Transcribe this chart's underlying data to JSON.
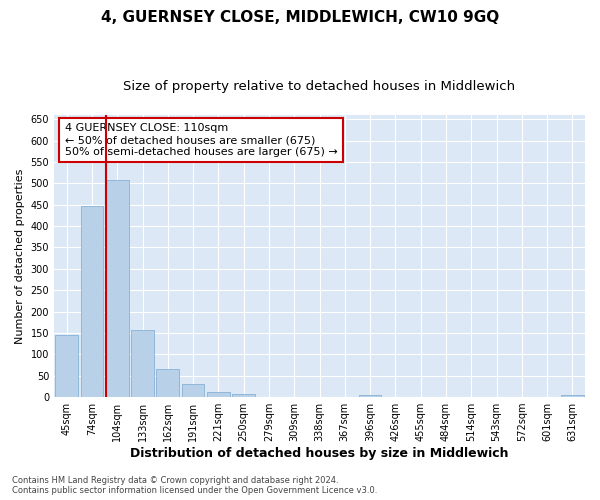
{
  "title": "4, GUERNSEY CLOSE, MIDDLEWICH, CW10 9GQ",
  "subtitle": "Size of property relative to detached houses in Middlewich",
  "xlabel": "Distribution of detached houses by size in Middlewich",
  "ylabel": "Number of detached properties",
  "categories": [
    "45sqm",
    "74sqm",
    "104sqm",
    "133sqm",
    "162sqm",
    "191sqm",
    "221sqm",
    "250sqm",
    "279sqm",
    "309sqm",
    "338sqm",
    "367sqm",
    "396sqm",
    "426sqm",
    "455sqm",
    "484sqm",
    "514sqm",
    "543sqm",
    "572sqm",
    "601sqm",
    "631sqm"
  ],
  "values": [
    145,
    448,
    507,
    157,
    65,
    30,
    13,
    7,
    0,
    0,
    0,
    0,
    5,
    0,
    0,
    0,
    0,
    0,
    0,
    0,
    4
  ],
  "bar_color": "#b8d0e8",
  "bar_edgecolor": "#7aaad0",
  "vline_color": "#cc0000",
  "annotation_text": "4 GUERNSEY CLOSE: 110sqm\n← 50% of detached houses are smaller (675)\n50% of semi-detached houses are larger (675) →",
  "annotation_box_edgecolor": "#cc0000",
  "ylim": [
    0,
    660
  ],
  "yticks": [
    0,
    50,
    100,
    150,
    200,
    250,
    300,
    350,
    400,
    450,
    500,
    550,
    600,
    650
  ],
  "background_color": "#dce8f5",
  "grid_color": "#ffffff",
  "footer": "Contains HM Land Registry data © Crown copyright and database right 2024.\nContains public sector information licensed under the Open Government Licence v3.0.",
  "title_fontsize": 11,
  "subtitle_fontsize": 9.5,
  "xlabel_fontsize": 9,
  "ylabel_fontsize": 8,
  "tick_fontsize": 7,
  "annotation_fontsize": 8,
  "footer_fontsize": 6
}
